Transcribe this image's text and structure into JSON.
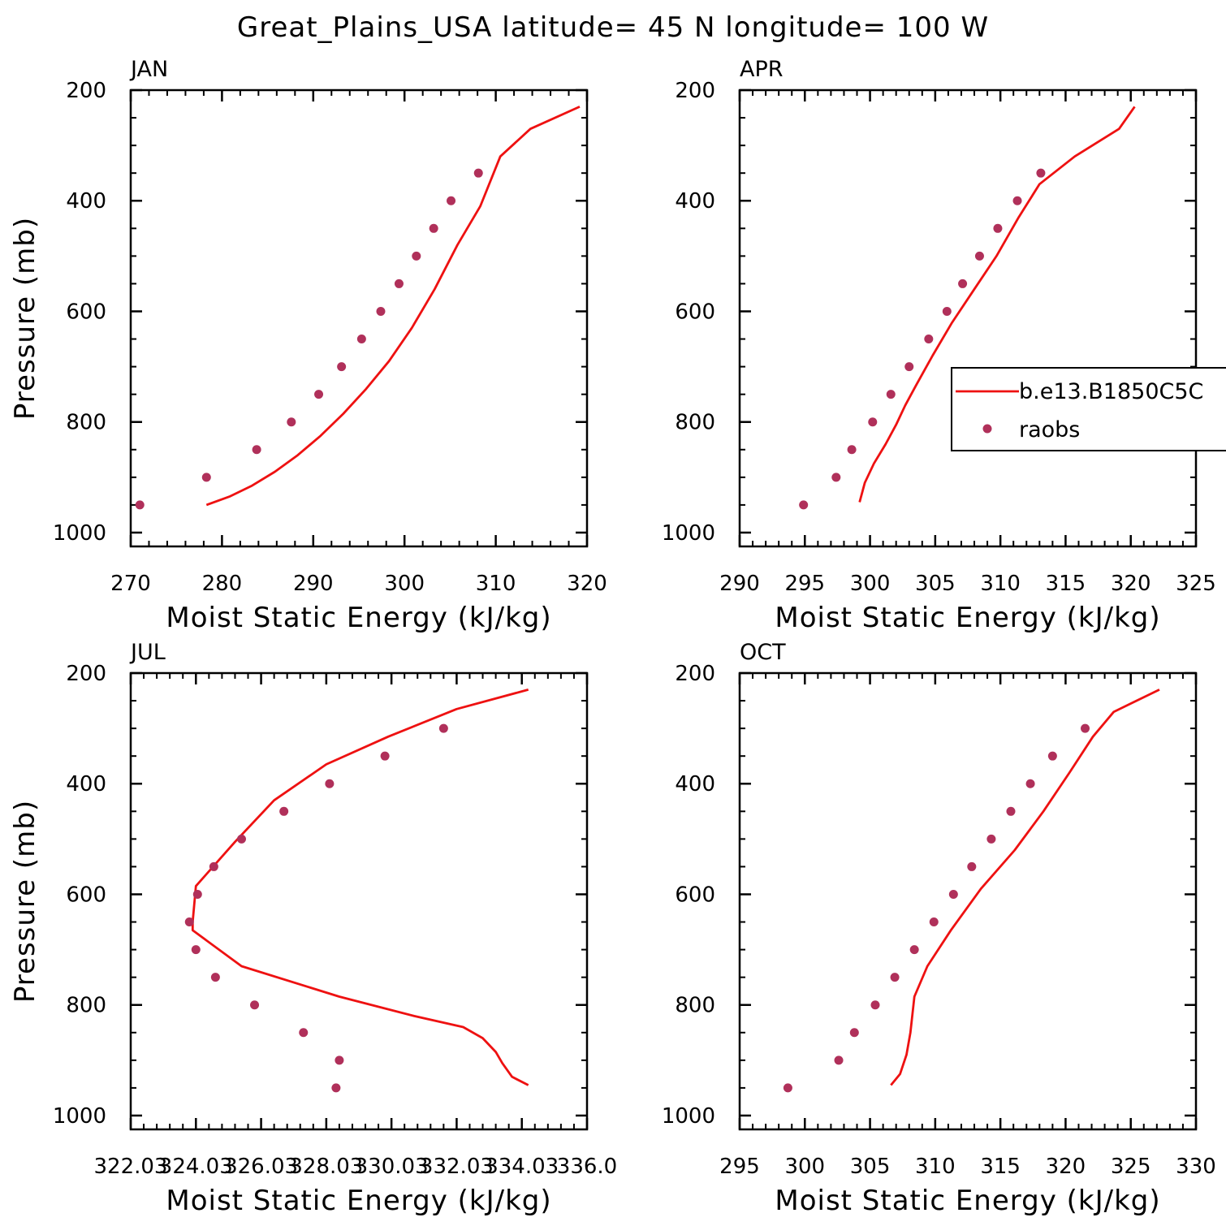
{
  "suptitle": "Great_Plains_USA  latitude= 45 N longitude= 100 W",
  "colors": {
    "model_line": "#ee1111",
    "obs_marker": "#b0305a",
    "axes": "#000000"
  },
  "legend": {
    "placement": "panel APR, right-middle",
    "entries": [
      {
        "label": "b.e13.B1850C5C",
        "style": "line",
        "color": "#ee1111"
      },
      {
        "label": "raobs",
        "style": "marker",
        "color": "#b0305a"
      }
    ]
  },
  "chart_data": [
    {
      "type": "line+scatter",
      "title": "JAN",
      "xlabel": "Moist Static Energy (kJ/kg)",
      "ylabel": "Pressure (mb)",
      "xlim": [
        270,
        320
      ],
      "ylim": [
        1025,
        200
      ],
      "y_inverted": true,
      "xticks": [
        "270",
        "280",
        "290",
        "300",
        "310",
        "320"
      ],
      "yticks": [
        "200",
        "400",
        "600",
        "800",
        "1000"
      ],
      "series": [
        {
          "name": "b.e13.B1850C5C",
          "style": "line",
          "points": [
            [
              278.3,
              950
            ],
            [
              280.8,
              935
            ],
            [
              283.3,
              915
            ],
            [
              285.8,
              890
            ],
            [
              288.3,
              860
            ],
            [
              290.8,
              825
            ],
            [
              293.3,
              785
            ],
            [
              295.8,
              740
            ],
            [
              298.3,
              690
            ],
            [
              300.8,
              630
            ],
            [
              303.3,
              560
            ],
            [
              305.8,
              480
            ],
            [
              308.3,
              410
            ],
            [
              310.5,
              320
            ],
            [
              313.8,
              270
            ],
            [
              319.2,
              230
            ]
          ]
        },
        {
          "name": "raobs",
          "style": "marker",
          "points": [
            [
              271.0,
              950
            ],
            [
              278.3,
              900
            ],
            [
              283.8,
              850
            ],
            [
              287.6,
              800
            ],
            [
              290.6,
              750
            ],
            [
              293.1,
              700
            ],
            [
              295.3,
              650
            ],
            [
              297.4,
              600
            ],
            [
              299.4,
              550
            ],
            [
              301.3,
              500
            ],
            [
              303.2,
              450
            ],
            [
              305.1,
              400
            ],
            [
              308.1,
              350
            ]
          ]
        }
      ]
    },
    {
      "type": "line+scatter",
      "title": "APR",
      "xlabel": "Moist Static Energy (kJ/kg)",
      "ylabel": "",
      "xlim": [
        290,
        325
      ],
      "ylim": [
        1025,
        200
      ],
      "y_inverted": true,
      "xticks": [
        "290",
        "295",
        "300",
        "305",
        "310",
        "315",
        "320",
        "325"
      ],
      "yticks": [
        "200",
        "400",
        "600",
        "800",
        "1000"
      ],
      "series": [
        {
          "name": "b.e13.B1850C5C",
          "style": "line",
          "points": [
            [
              299.2,
              945
            ],
            [
              299.6,
              910
            ],
            [
              300.3,
              875
            ],
            [
              301.2,
              840
            ],
            [
              302.0,
              805
            ],
            [
              302.7,
              770
            ],
            [
              303.5,
              735
            ],
            [
              304.8,
              680
            ],
            [
              306.3,
              620
            ],
            [
              308.0,
              560
            ],
            [
              309.7,
              500
            ],
            [
              311.4,
              430
            ],
            [
              313.0,
              370
            ],
            [
              315.7,
              320
            ],
            [
              319.1,
              270
            ],
            [
              320.3,
              230
            ]
          ]
        },
        {
          "name": "raobs",
          "style": "marker",
          "points": [
            [
              294.9,
              950
            ],
            [
              297.4,
              900
            ],
            [
              298.6,
              850
            ],
            [
              300.2,
              800
            ],
            [
              301.6,
              750
            ],
            [
              303.0,
              700
            ],
            [
              304.5,
              650
            ],
            [
              305.9,
              600
            ],
            [
              307.1,
              550
            ],
            [
              308.4,
              500
            ],
            [
              309.8,
              450
            ],
            [
              311.3,
              400
            ],
            [
              313.1,
              350
            ]
          ]
        }
      ]
    },
    {
      "type": "line+scatter",
      "title": "JUL",
      "xlabel": "Moist Static Energy (kJ/kg)",
      "ylabel": "Pressure (mb)",
      "xlim": [
        322.03,
        336.03
      ],
      "ylim": [
        1025,
        200
      ],
      "y_inverted": true,
      "xticks": [
        "322.03",
        "324.03",
        "326.03",
        "328.03",
        "330.03",
        "332.03",
        "334.03",
        "336.0"
      ],
      "yticks": [
        "200",
        "400",
        "600",
        "800",
        "1000"
      ],
      "series": [
        {
          "name": "b.e13.B1850C5C",
          "style": "line",
          "points": [
            [
              334.23,
              945
            ],
            [
              333.73,
              930
            ],
            [
              333.43,
              905
            ],
            [
              333.23,
              885
            ],
            [
              332.83,
              860
            ],
            [
              332.23,
              840
            ],
            [
              330.73,
              820
            ],
            [
              328.43,
              785
            ],
            [
              325.43,
              730
            ],
            [
              323.93,
              665
            ],
            [
              323.93,
              650
            ],
            [
              324.03,
              585
            ],
            [
              325.23,
              505
            ],
            [
              326.43,
              430
            ],
            [
              328.03,
              365
            ],
            [
              329.93,
              315
            ],
            [
              332.03,
              265
            ],
            [
              334.23,
              230
            ]
          ]
        },
        {
          "name": "raobs",
          "style": "marker",
          "points": [
            [
              328.33,
              950
            ],
            [
              328.43,
              900
            ],
            [
              327.33,
              850
            ],
            [
              325.83,
              800
            ],
            [
              324.63,
              750
            ],
            [
              324.03,
              700
            ],
            [
              323.83,
              650
            ],
            [
              324.08,
              600
            ],
            [
              324.58,
              550
            ],
            [
              325.43,
              500
            ],
            [
              326.73,
              450
            ],
            [
              328.13,
              400
            ],
            [
              329.83,
              350
            ],
            [
              331.63,
              300
            ]
          ]
        }
      ]
    },
    {
      "type": "line+scatter",
      "title": "OCT",
      "xlabel": "Moist Static Energy (kJ/kg)",
      "ylabel": "",
      "xlim": [
        295,
        330
      ],
      "ylim": [
        1025,
        200
      ],
      "y_inverted": true,
      "xticks": [
        "295",
        "300",
        "305",
        "310",
        "315",
        "320",
        "325",
        "330"
      ],
      "yticks": [
        "200",
        "400",
        "600",
        "800",
        "1000"
      ],
      "series": [
        {
          "name": "b.e13.B1850C5C",
          "style": "line",
          "points": [
            [
              306.6,
              945
            ],
            [
              307.3,
              925
            ],
            [
              307.8,
              890
            ],
            [
              308.1,
              850
            ],
            [
              308.4,
              785
            ],
            [
              309.4,
              730
            ],
            [
              311.2,
              665
            ],
            [
              313.5,
              590
            ],
            [
              316.1,
              520
            ],
            [
              318.3,
              450
            ],
            [
              320.3,
              380
            ],
            [
              322.1,
              315
            ],
            [
              323.7,
              270
            ],
            [
              327.2,
              230
            ]
          ]
        },
        {
          "name": "raobs",
          "style": "marker",
          "points": [
            [
              298.7,
              950
            ],
            [
              302.6,
              900
            ],
            [
              303.8,
              850
            ],
            [
              305.4,
              800
            ],
            [
              306.9,
              750
            ],
            [
              308.4,
              700
            ],
            [
              309.9,
              650
            ],
            [
              311.4,
              600
            ],
            [
              312.8,
              550
            ],
            [
              314.3,
              500
            ],
            [
              315.8,
              450
            ],
            [
              317.3,
              400
            ],
            [
              319.0,
              350
            ],
            [
              321.5,
              300
            ]
          ]
        }
      ]
    }
  ]
}
